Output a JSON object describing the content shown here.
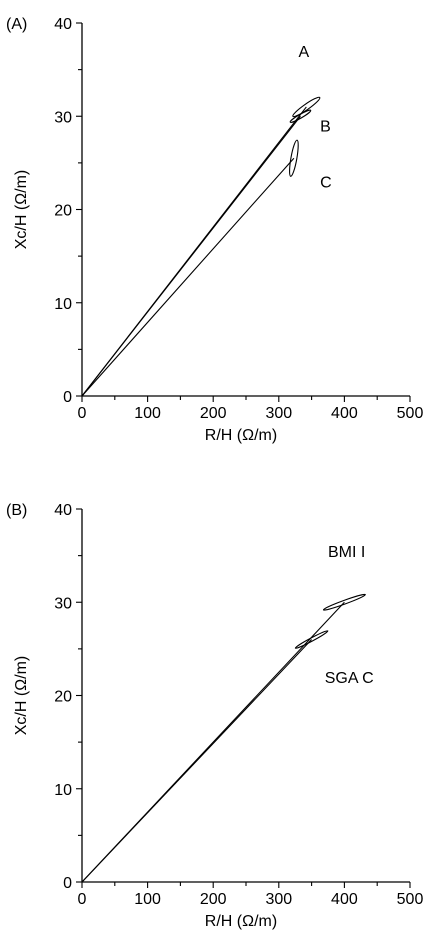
{
  "chart_data": [
    {
      "type": "scatter",
      "panel_label": "(A)",
      "xlabel": "R/H (Ω/m)",
      "ylabel": "Xc/H (Ω/m)",
      "xlim": [
        0,
        500
      ],
      "ylim": [
        0,
        40
      ],
      "xticks": [
        0,
        100,
        200,
        300,
        400,
        500
      ],
      "yticks": [
        0,
        10,
        20,
        30,
        40
      ],
      "series": [
        {
          "name": "A",
          "x": 342,
          "y": 31,
          "rx": 25,
          "ry": 4.2,
          "angle_deg": 35,
          "label_x": 330,
          "label_y": 37
        },
        {
          "name": "B",
          "x": 333,
          "y": 30,
          "rx": 18,
          "ry": 2.8,
          "angle_deg": 30,
          "label_x": 363,
          "label_y": 29
        },
        {
          "name": "C",
          "x": 323,
          "y": 25.5,
          "rx": 28,
          "ry": 4.5,
          "angle_deg": 80,
          "label_x": 363,
          "label_y": 23
        }
      ]
    },
    {
      "type": "scatter",
      "panel_label": "(B)",
      "xlabel": "R/H (Ω/m)",
      "ylabel": "Xc/H (Ω/m)",
      "xlim": [
        0,
        500
      ],
      "ylim": [
        0,
        40
      ],
      "xticks": [
        0,
        100,
        200,
        300,
        400,
        500
      ],
      "yticks": [
        0,
        10,
        20,
        30,
        40
      ],
      "series": [
        {
          "name": "BMI I",
          "x": 400,
          "y": 30,
          "rx": 34,
          "ry": 2.8,
          "angle_deg": 20,
          "label_x": 375,
          "label_y": 35.5
        },
        {
          "name": "SGA C",
          "x": 350,
          "y": 26,
          "rx": 28,
          "ry": 2.5,
          "angle_deg": 28,
          "label_x": 370,
          "label_y": 22
        }
      ]
    }
  ]
}
